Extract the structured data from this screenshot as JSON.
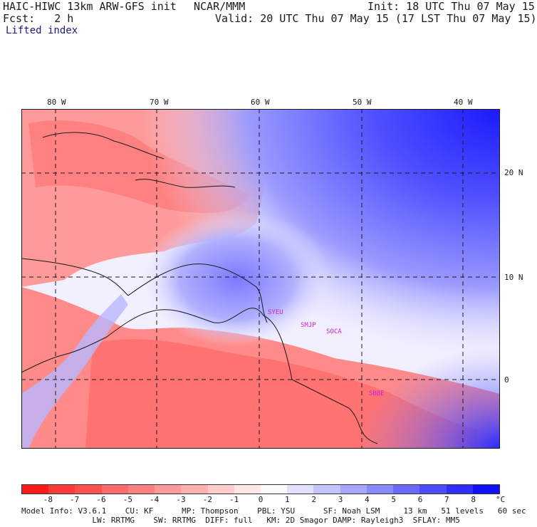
{
  "header": {
    "model_title": "HAIC-HIWC 13km ARW-GFS init",
    "org": "NCAR/MMM",
    "init": "Init: 18 UTC Thu 07 May 15",
    "fcst": "Fcst:   2 h",
    "valid": "Valid: 20 UTC Thu 07 May 15 (17 LST Thu 07 May 15)",
    "field": "Lifted index"
  },
  "map": {
    "lon_labels": [
      "80 W",
      "70 W",
      "60 W",
      "50 W",
      "40 W"
    ],
    "lat_labels": [
      "20 N",
      "10 N",
      "0"
    ],
    "stations": [
      "SYEU",
      "SMJP",
      "SOCA",
      "SBBE"
    ],
    "station_color": "#d020d0"
  },
  "legend": {
    "values": [
      "-8",
      "-7",
      "-6",
      "-5",
      "-4",
      "-3",
      "-2",
      "-1",
      "0",
      "1",
      "2",
      "3",
      "4",
      "5",
      "6",
      "7",
      "8"
    ],
    "unit": "°C",
    "colors": [
      "#ff1a1a",
      "#ff3a3a",
      "#ff5050",
      "#ff6a6a",
      "#ff8080",
      "#ff9a9a",
      "#ffb0b0",
      "#ffcccc",
      "#ffe6e6",
      "#fafaff",
      "#e2e2ff",
      "#c4c4ff",
      "#a6a6ff",
      "#8888ff",
      "#6a6aff",
      "#4c4cff",
      "#2e2eff",
      "#1010ff"
    ]
  },
  "footer": {
    "line1": "Model Info: V3.6.1    CU: KF      MP: Thompson    PBL: YSU      SF: Noah LSM     13 km   51 levels   60 sec",
    "line2": "               LW: RRTMG    SW: RRTMG  DIFF: full   KM: 2D Smagor DAMP: Rayleigh3  SFLAY: MM5"
  }
}
